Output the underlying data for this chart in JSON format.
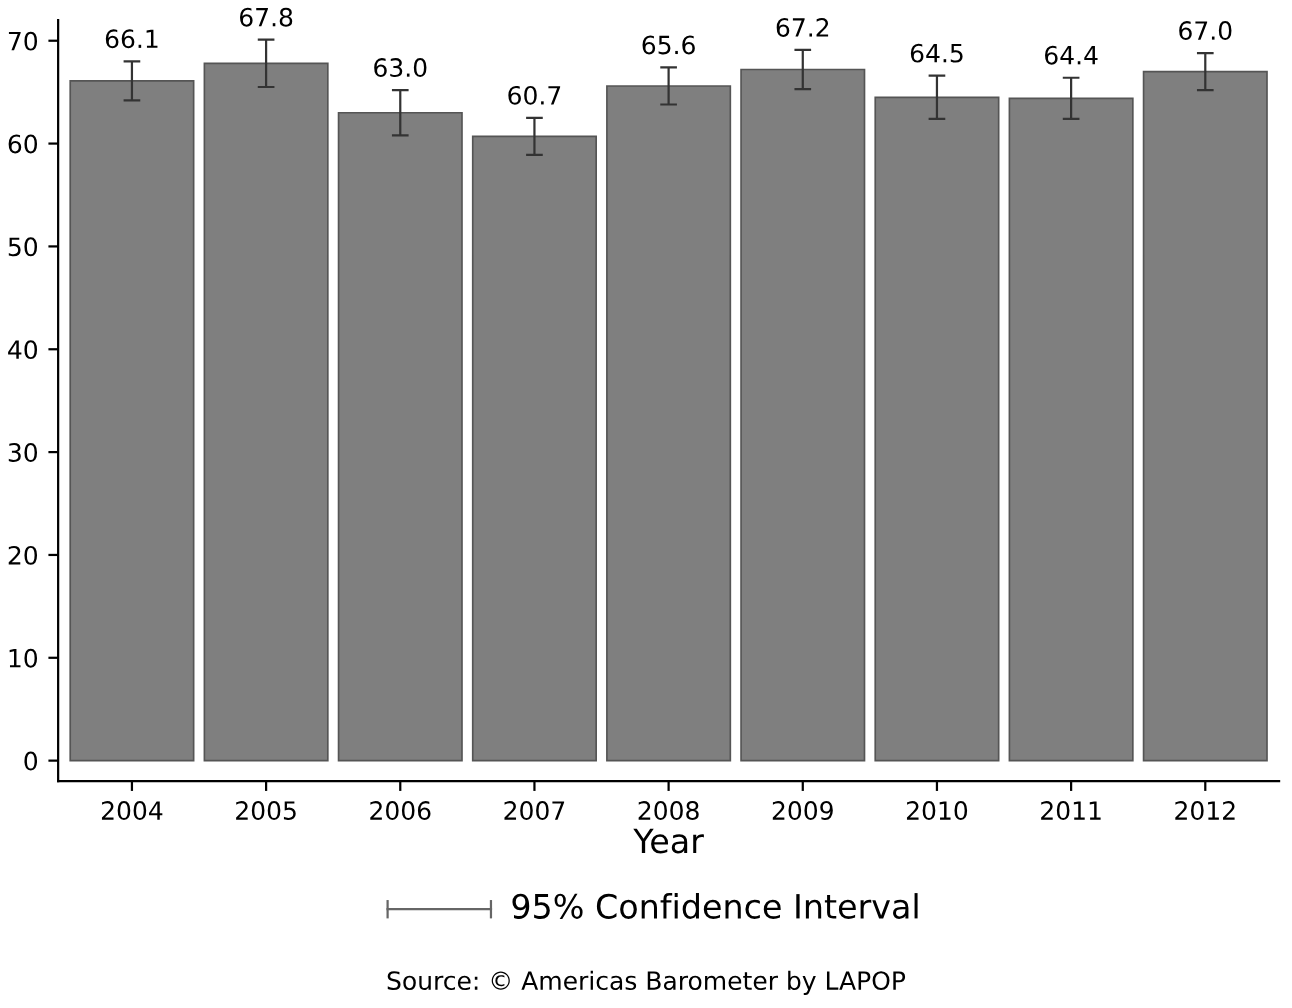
{
  "chart_data": {
    "type": "bar",
    "xlabel": "Year",
    "categories": [
      "2004",
      "2005",
      "2006",
      "2007",
      "2008",
      "2009",
      "2010",
      "2011",
      "2012"
    ],
    "values": [
      66.1,
      67.8,
      63.0,
      60.7,
      65.6,
      67.2,
      64.5,
      64.4,
      67.0
    ],
    "errors": [
      1.9,
      2.3,
      2.2,
      1.8,
      1.8,
      1.9,
      2.1,
      2.0,
      1.8
    ],
    "color": "#7f7f7f",
    "value_labels": [
      "66.1",
      "67.8",
      "63.0",
      "60.7",
      "65.6",
      "67.2",
      "64.5",
      "64.4",
      "67.0"
    ],
    "ylim": [
      -2,
      72
    ],
    "yticks": [
      0,
      10,
      20,
      30,
      40,
      50,
      60,
      70
    ],
    "grid": false,
    "annotations": [
      "95% Confidence Interval",
      "Source: © Americas Barometer by LAPOP"
    ]
  }
}
